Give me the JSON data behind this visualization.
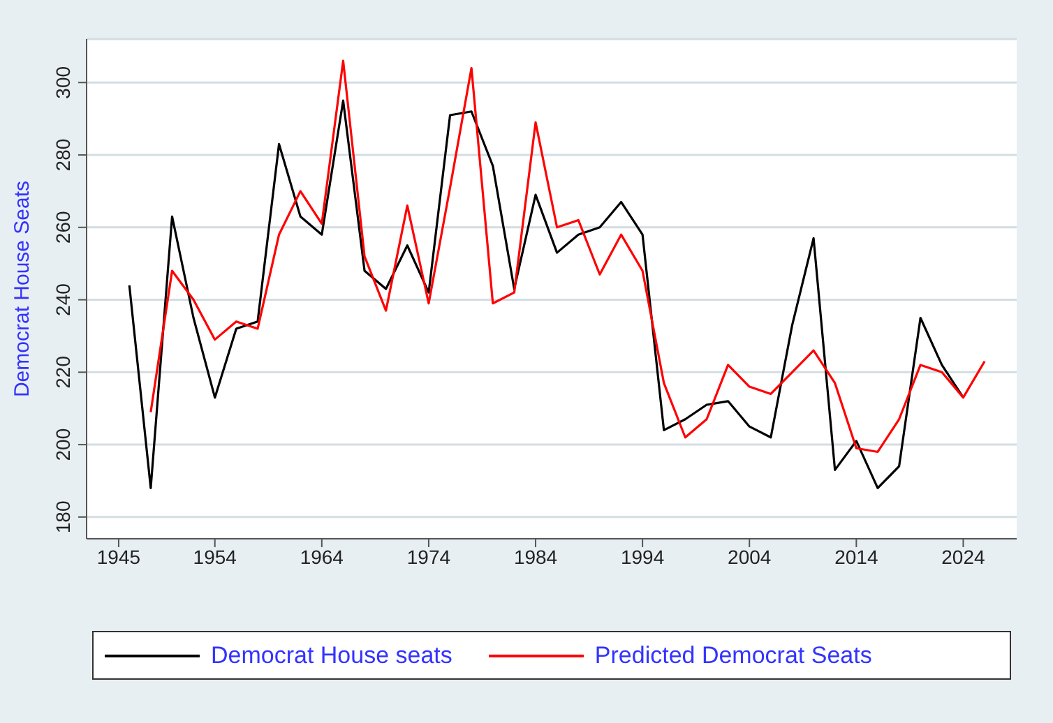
{
  "chart_data": {
    "type": "line",
    "ylabel": "Democrat House Seats",
    "xlim": [
      1942,
      2029
    ],
    "xticks": [
      1945,
      1954,
      1964,
      1974,
      1984,
      1994,
      2004,
      2014,
      2024
    ],
    "ylim": [
      174,
      312
    ],
    "yticks": [
      180,
      200,
      220,
      240,
      260,
      280,
      300
    ],
    "grid": "y",
    "legend": "bottom",
    "marker": "none",
    "line_style": "solid",
    "series": [
      {
        "name": "Democrat House seats",
        "color": "#000000",
        "x": [
          1946,
          1948,
          1950,
          1952,
          1954,
          1956,
          1958,
          1960,
          1962,
          1964,
          1966,
          1968,
          1970,
          1972,
          1974,
          1976,
          1978,
          1980,
          1982,
          1984,
          1986,
          1988,
          1990,
          1992,
          1994,
          1996,
          1998,
          2000,
          2002,
          2004,
          2006,
          2008,
          2010,
          2012,
          2014,
          2016,
          2018,
          2020,
          2022,
          2024
        ],
        "values": [
          244,
          188,
          263,
          235,
          213,
          232,
          234,
          283,
          263,
          258,
          295,
          248,
          243,
          255,
          242,
          291,
          292,
          277,
          243,
          269,
          253,
          258,
          260,
          267,
          258,
          204,
          207,
          211,
          212,
          205,
          202,
          233,
          257,
          193,
          201,
          188,
          194,
          235,
          222,
          213
        ]
      },
      {
        "name": "Predicted Democrat Seats",
        "color": "#ff0000",
        "x": [
          1948,
          1950,
          1952,
          1954,
          1956,
          1958,
          1960,
          1962,
          1964,
          1966,
          1968,
          1970,
          1972,
          1974,
          1976,
          1978,
          1980,
          1982,
          1984,
          1986,
          1988,
          1990,
          1992,
          1994,
          1996,
          1998,
          2000,
          2002,
          2004,
          2006,
          2008,
          2010,
          2012,
          2014,
          2016,
          2018,
          2020,
          2022,
          2024,
          2026
        ],
        "values": [
          209,
          248,
          240,
          229,
          234,
          232,
          258,
          270,
          261,
          306,
          252,
          237,
          266,
          239,
          271,
          304,
          239,
          242,
          289,
          260,
          262,
          247,
          258,
          248,
          217,
          202,
          207,
          222,
          216,
          214,
          220,
          226,
          217,
          199,
          198,
          207,
          222,
          220,
          213,
          223
        ]
      }
    ]
  }
}
